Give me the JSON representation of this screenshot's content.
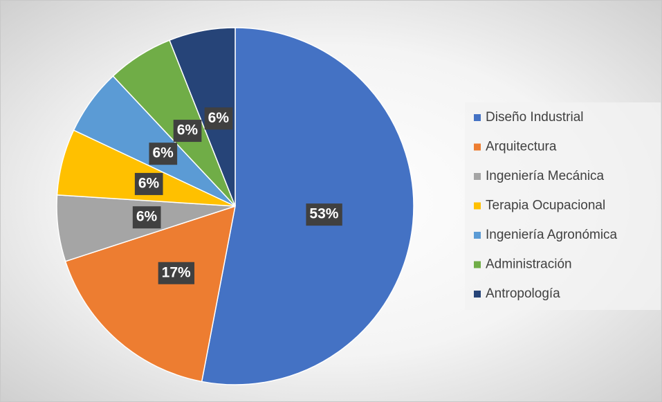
{
  "chart_data": {
    "type": "pie",
    "categories": [
      "Diseño Industrial",
      "Arquitectura",
      "Ingeniería Mecánica",
      "Terapia Ocupacional",
      "Ingeniería Agronómica",
      "Administración",
      "Antropología"
    ],
    "values": [
      53,
      17,
      6,
      6,
      6,
      6,
      6
    ],
    "value_labels": [
      "53%",
      "17%",
      "6%",
      "6%",
      "6%",
      "6%",
      "6%"
    ],
    "colors": [
      "#4472c4",
      "#ed7d31",
      "#a5a5a5",
      "#ffc000",
      "#5b9bd5",
      "#70ad47",
      "#264478"
    ],
    "legend": "right"
  }
}
